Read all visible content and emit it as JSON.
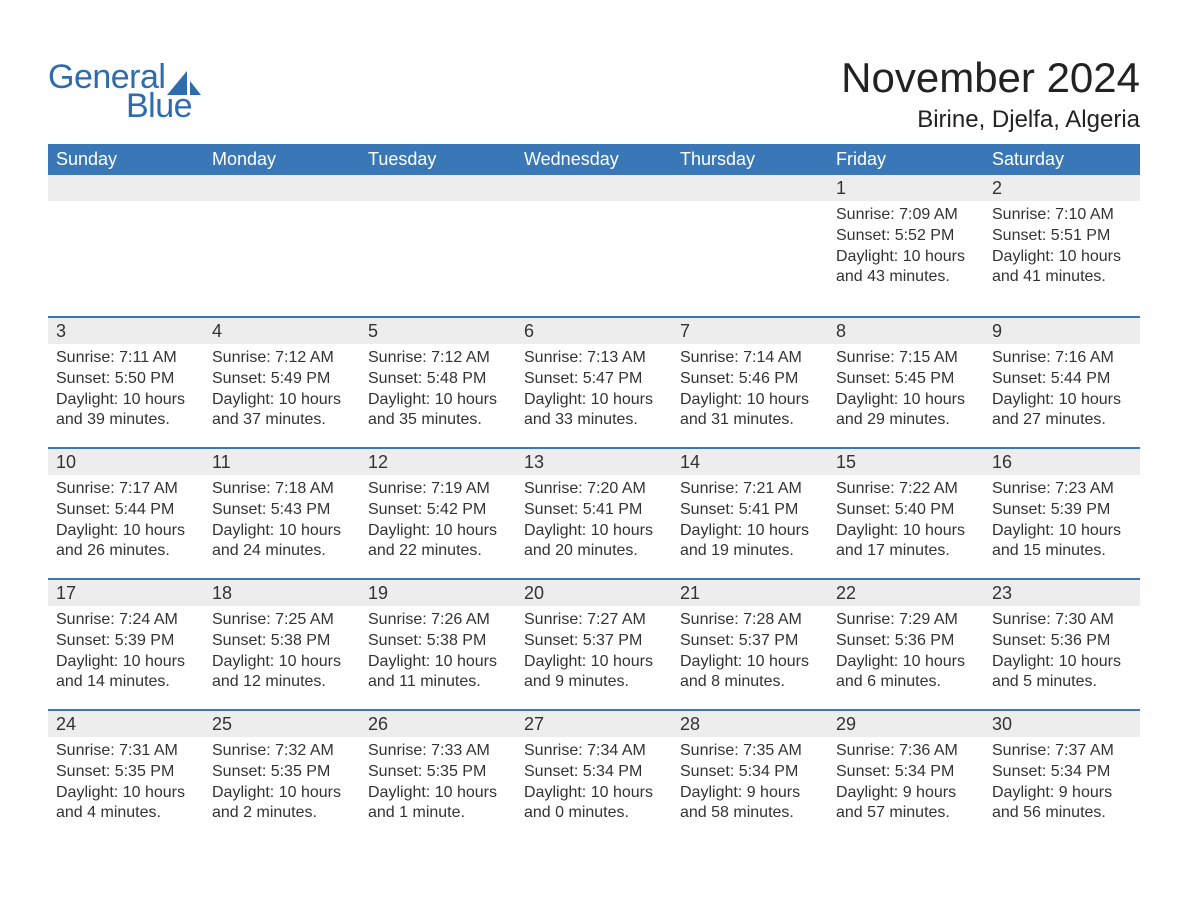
{
  "logo": {
    "text_general": "General",
    "text_blue": "Blue",
    "color": "#2e6baf"
  },
  "title": "November 2024",
  "location": "Birine, Djelfa, Algeria",
  "colors": {
    "header_bg": "#3a77b7",
    "header_text": "#ffffff",
    "daynum_bg": "#ededed",
    "text": "#333333",
    "row_border": "#3a77b7",
    "page_bg": "#ffffff"
  },
  "day_headers": [
    "Sunday",
    "Monday",
    "Tuesday",
    "Wednesday",
    "Thursday",
    "Friday",
    "Saturday"
  ],
  "weeks": [
    [
      null,
      null,
      null,
      null,
      null,
      {
        "n": "1",
        "sunrise": "Sunrise: 7:09 AM",
        "sunset": "Sunset: 5:52 PM",
        "daylight": "Daylight: 10 hours and 43 minutes."
      },
      {
        "n": "2",
        "sunrise": "Sunrise: 7:10 AM",
        "sunset": "Sunset: 5:51 PM",
        "daylight": "Daylight: 10 hours and 41 minutes."
      }
    ],
    [
      {
        "n": "3",
        "sunrise": "Sunrise: 7:11 AM",
        "sunset": "Sunset: 5:50 PM",
        "daylight": "Daylight: 10 hours and 39 minutes."
      },
      {
        "n": "4",
        "sunrise": "Sunrise: 7:12 AM",
        "sunset": "Sunset: 5:49 PM",
        "daylight": "Daylight: 10 hours and 37 minutes."
      },
      {
        "n": "5",
        "sunrise": "Sunrise: 7:12 AM",
        "sunset": "Sunset: 5:48 PM",
        "daylight": "Daylight: 10 hours and 35 minutes."
      },
      {
        "n": "6",
        "sunrise": "Sunrise: 7:13 AM",
        "sunset": "Sunset: 5:47 PM",
        "daylight": "Daylight: 10 hours and 33 minutes."
      },
      {
        "n": "7",
        "sunrise": "Sunrise: 7:14 AM",
        "sunset": "Sunset: 5:46 PM",
        "daylight": "Daylight: 10 hours and 31 minutes."
      },
      {
        "n": "8",
        "sunrise": "Sunrise: 7:15 AM",
        "sunset": "Sunset: 5:45 PM",
        "daylight": "Daylight: 10 hours and 29 minutes."
      },
      {
        "n": "9",
        "sunrise": "Sunrise: 7:16 AM",
        "sunset": "Sunset: 5:44 PM",
        "daylight": "Daylight: 10 hours and 27 minutes."
      }
    ],
    [
      {
        "n": "10",
        "sunrise": "Sunrise: 7:17 AM",
        "sunset": "Sunset: 5:44 PM",
        "daylight": "Daylight: 10 hours and 26 minutes."
      },
      {
        "n": "11",
        "sunrise": "Sunrise: 7:18 AM",
        "sunset": "Sunset: 5:43 PM",
        "daylight": "Daylight: 10 hours and 24 minutes."
      },
      {
        "n": "12",
        "sunrise": "Sunrise: 7:19 AM",
        "sunset": "Sunset: 5:42 PM",
        "daylight": "Daylight: 10 hours and 22 minutes."
      },
      {
        "n": "13",
        "sunrise": "Sunrise: 7:20 AM",
        "sunset": "Sunset: 5:41 PM",
        "daylight": "Daylight: 10 hours and 20 minutes."
      },
      {
        "n": "14",
        "sunrise": "Sunrise: 7:21 AM",
        "sunset": "Sunset: 5:41 PM",
        "daylight": "Daylight: 10 hours and 19 minutes."
      },
      {
        "n": "15",
        "sunrise": "Sunrise: 7:22 AM",
        "sunset": "Sunset: 5:40 PM",
        "daylight": "Daylight: 10 hours and 17 minutes."
      },
      {
        "n": "16",
        "sunrise": "Sunrise: 7:23 AM",
        "sunset": "Sunset: 5:39 PM",
        "daylight": "Daylight: 10 hours and 15 minutes."
      }
    ],
    [
      {
        "n": "17",
        "sunrise": "Sunrise: 7:24 AM",
        "sunset": "Sunset: 5:39 PM",
        "daylight": "Daylight: 10 hours and 14 minutes."
      },
      {
        "n": "18",
        "sunrise": "Sunrise: 7:25 AM",
        "sunset": "Sunset: 5:38 PM",
        "daylight": "Daylight: 10 hours and 12 minutes."
      },
      {
        "n": "19",
        "sunrise": "Sunrise: 7:26 AM",
        "sunset": "Sunset: 5:38 PM",
        "daylight": "Daylight: 10 hours and 11 minutes."
      },
      {
        "n": "20",
        "sunrise": "Sunrise: 7:27 AM",
        "sunset": "Sunset: 5:37 PM",
        "daylight": "Daylight: 10 hours and 9 minutes."
      },
      {
        "n": "21",
        "sunrise": "Sunrise: 7:28 AM",
        "sunset": "Sunset: 5:37 PM",
        "daylight": "Daylight: 10 hours and 8 minutes."
      },
      {
        "n": "22",
        "sunrise": "Sunrise: 7:29 AM",
        "sunset": "Sunset: 5:36 PM",
        "daylight": "Daylight: 10 hours and 6 minutes."
      },
      {
        "n": "23",
        "sunrise": "Sunrise: 7:30 AM",
        "sunset": "Sunset: 5:36 PM",
        "daylight": "Daylight: 10 hours and 5 minutes."
      }
    ],
    [
      {
        "n": "24",
        "sunrise": "Sunrise: 7:31 AM",
        "sunset": "Sunset: 5:35 PM",
        "daylight": "Daylight: 10 hours and 4 minutes."
      },
      {
        "n": "25",
        "sunrise": "Sunrise: 7:32 AM",
        "sunset": "Sunset: 5:35 PM",
        "daylight": "Daylight: 10 hours and 2 minutes."
      },
      {
        "n": "26",
        "sunrise": "Sunrise: 7:33 AM",
        "sunset": "Sunset: 5:35 PM",
        "daylight": "Daylight: 10 hours and 1 minute."
      },
      {
        "n": "27",
        "sunrise": "Sunrise: 7:34 AM",
        "sunset": "Sunset: 5:34 PM",
        "daylight": "Daylight: 10 hours and 0 minutes."
      },
      {
        "n": "28",
        "sunrise": "Sunrise: 7:35 AM",
        "sunset": "Sunset: 5:34 PM",
        "daylight": "Daylight: 9 hours and 58 minutes."
      },
      {
        "n": "29",
        "sunrise": "Sunrise: 7:36 AM",
        "sunset": "Sunset: 5:34 PM",
        "daylight": "Daylight: 9 hours and 57 minutes."
      },
      {
        "n": "30",
        "sunrise": "Sunrise: 7:37 AM",
        "sunset": "Sunset: 5:34 PM",
        "daylight": "Daylight: 9 hours and 56 minutes."
      }
    ]
  ]
}
